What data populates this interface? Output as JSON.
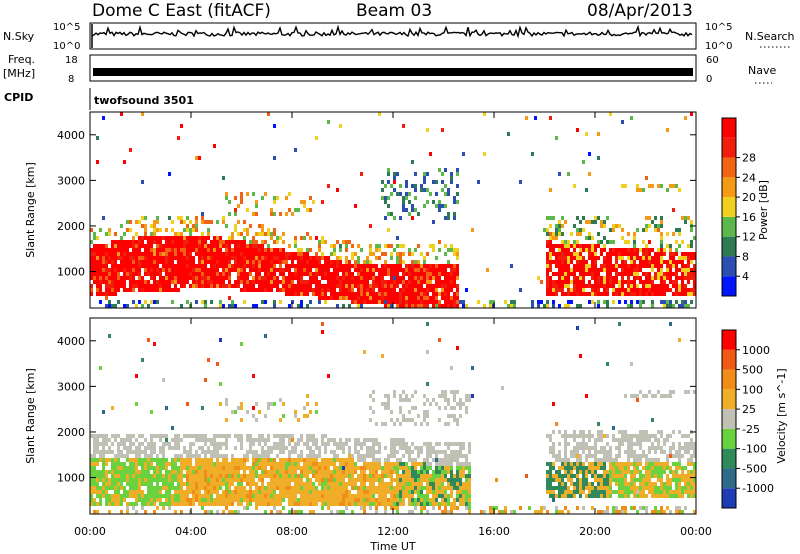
{
  "header": {
    "radar": "Dome C East (fitACF)",
    "beam": "Beam 03",
    "date": "08/Apr/2013"
  },
  "cpid_label": "CPID",
  "cpid_text": "twofsound 3501",
  "chart_data": [
    {
      "type": "line",
      "name": "nsky-nsearch",
      "ylabel_left": "N.Sky",
      "ylabel_right": "N.Search",
      "yticks_left": [
        "10^5",
        "10^0"
      ],
      "yticks_right": [
        "10^5",
        "10^0"
      ],
      "xlim": [
        0,
        24
      ]
    },
    {
      "type": "line",
      "name": "freq-nave",
      "ylabel_left_1": "Freq.",
      "ylabel_left_2": "[MHz]",
      "ylabel_right": "Nave",
      "yticks_left": [
        18,
        8
      ],
      "yticks_right": [
        60,
        0
      ],
      "xlim": [
        0,
        24
      ]
    },
    {
      "type": "heatmap",
      "name": "power",
      "ylabel": "Slant Range [km]",
      "ylim": [
        200,
        4500
      ],
      "yticks": [
        1000,
        2000,
        3000,
        4000
      ],
      "colorbar_label": "Power [dB]",
      "colorbar_ticks": [
        4,
        8,
        12,
        16,
        20,
        24,
        28
      ],
      "colorbar_colors": [
        "#0014ff",
        "#2a4fb0",
        "#2e7a52",
        "#5cb84a",
        "#f0d21e",
        "#f59a16",
        "#f06414",
        "#f01e0a",
        "#ff0000"
      ],
      "xlim": [
        0,
        24
      ]
    },
    {
      "type": "heatmap",
      "name": "velocity",
      "ylabel": "Slant Range [km]",
      "ylim": [
        200,
        4500
      ],
      "yticks": [
        1000,
        2000,
        3000,
        4000
      ],
      "colorbar_label": "Velocity [m s^-1]",
      "colorbar_ticks": [
        "1000",
        "500",
        "100",
        "25",
        "-25",
        "-100",
        "-500",
        "-1000"
      ],
      "colorbar_colors": [
        "#1e3cb4",
        "#2e6a8a",
        "#2e8a5a",
        "#6ad23e",
        "#c0c0b4",
        "#f0ae28",
        "#f08c18",
        "#f05a14",
        "#ff0000"
      ],
      "xlim": [
        0,
        24
      ]
    }
  ],
  "xaxis": {
    "label": "Time UT",
    "ticks": [
      "00:00",
      "04:00",
      "08:00",
      "12:00",
      "16:00",
      "20:00",
      "00:00"
    ],
    "tick_hours": [
      0,
      4,
      8,
      12,
      16,
      20,
      24
    ]
  }
}
